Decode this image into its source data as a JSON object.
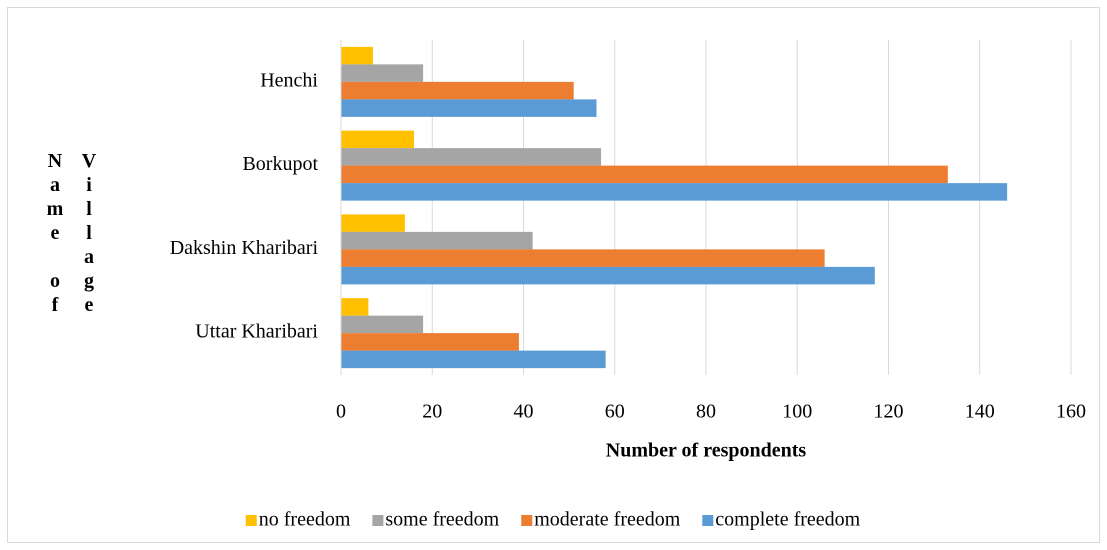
{
  "chart_data": {
    "type": "bar",
    "orientation": "horizontal",
    "x_label": "Number of respondents",
    "y_label": "Name of Village",
    "categories": [
      "Uttar Kharibari",
      "Dakshin Kharibari",
      "Borkupot",
      "Henchi"
    ],
    "series": [
      {
        "name": "no freedom",
        "color": "#ffc000",
        "values": [
          6,
          14,
          16,
          7
        ]
      },
      {
        "name": "some freedom",
        "color": "#a5a5a5",
        "values": [
          18,
          42,
          57,
          18
        ]
      },
      {
        "name": "moderate freedom",
        "color": "#ed7d31",
        "values": [
          39,
          106,
          133,
          51
        ]
      },
      {
        "name": "complete freedom",
        "color": "#5b9bd5",
        "values": [
          58,
          117,
          146,
          56
        ]
      }
    ],
    "xlim": [
      0,
      160
    ],
    "xticks": [
      0,
      20,
      40,
      60,
      80,
      100,
      120,
      140,
      160
    ],
    "grid": true,
    "legend": "bottom"
  }
}
